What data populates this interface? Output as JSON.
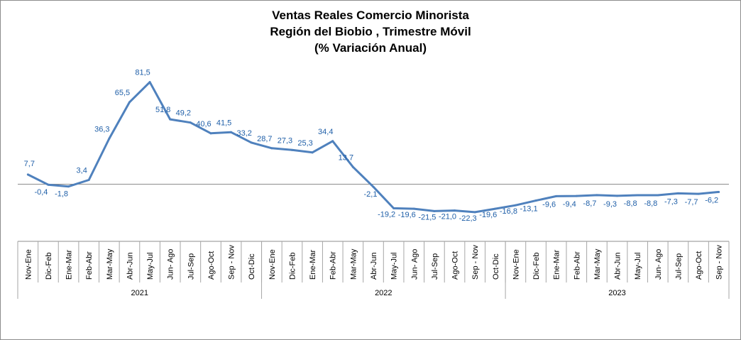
{
  "chart_data": {
    "type": "line",
    "title": "Ventas Reales Comercio Minorista",
    "subtitle": "Región del Biobio , Trimestre Móvil",
    "subtitle2": "(% Variación Anual)",
    "xlabel": "",
    "ylabel": "",
    "grid": false,
    "legend": "none",
    "line_color": "#4f81bd",
    "label_color": "#1f5fa8",
    "categories": [
      "Nov-Ene",
      "Dic-Feb",
      "Ene-Mar",
      "Feb-Abr",
      "Mar-May",
      "Abr-Jun",
      "May-Jul",
      "Jun- Ago",
      "Jul-Sep",
      "Ago-Oct",
      "Sep - Nov",
      "Oct-Dic",
      "Nov-Ene",
      "Dic-Feb",
      "Ene-Mar",
      "Feb-Abr",
      "Mar-May",
      "Abr-Jun",
      "May-Jul",
      "Jun- Ago",
      "Jul-Sep",
      "Ago-Oct",
      "Sep - Nov",
      "Oct-Dic",
      "Nov-Ene",
      "Dic-Feb",
      "Ene-Mar",
      "Feb-Abr",
      "Mar-May",
      "Abr-Jun",
      "May-Jul",
      "Jun- Ago",
      "Jul-Sep",
      "Ago-Oct",
      "Sep - Nov"
    ],
    "years": [
      {
        "label": "2021",
        "start": 0,
        "end": 11
      },
      {
        "label": "2022",
        "start": 12,
        "end": 23
      },
      {
        "label": "2023",
        "start": 24,
        "end": 34
      }
    ],
    "values": [
      7.7,
      -0.4,
      -1.8,
      3.4,
      36.3,
      65.5,
      81.5,
      51.8,
      49.2,
      40.6,
      41.5,
      33.2,
      28.7,
      27.3,
      25.3,
      34.4,
      13.7,
      -2.1,
      -19.2,
      -19.6,
      -21.5,
      -21.0,
      -22.3,
      -19.6,
      -16.8,
      -13.1,
      -9.6,
      -9.4,
      -8.7,
      -9.3,
      -8.8,
      -8.8,
      -7.3,
      -7.7,
      -6.2
    ],
    "data_labels": [
      "7,7",
      "-0,4",
      "-1,8",
      "3,4",
      "36,3",
      "65,5",
      "81,5",
      "51,8",
      "49,2",
      "40,6",
      "41,5",
      "33,2",
      "28,7",
      "27,3",
      "25,3",
      "34,4",
      "13,7",
      "-2,1",
      "-19,2",
      "-19,6",
      "-21,5",
      "-21,0",
      "-22,3",
      "-19,6",
      "-16,8",
      "-13,1",
      "-9,6",
      "-9,4",
      "-8,7",
      "-9,3",
      "-8,8",
      "-8,8",
      "-7,3",
      "-7,7",
      "-6,2"
    ],
    "ylim": [
      -30,
      90
    ]
  }
}
